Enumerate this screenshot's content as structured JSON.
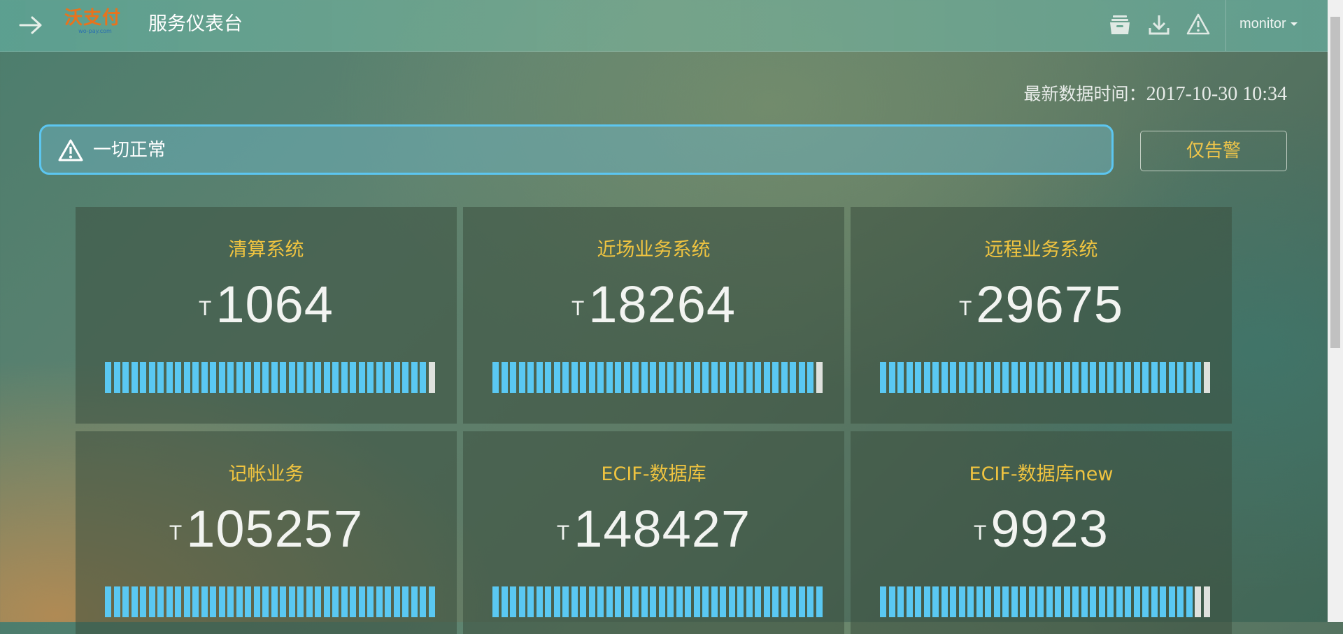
{
  "header": {
    "logo_text": "沃支付",
    "logo_subtext": "wo-pay.com",
    "title": "服务仪表台",
    "user": "monitor",
    "icons": [
      "archive-icon",
      "download-icon",
      "warning-icon"
    ]
  },
  "timestamp": {
    "label": "最新数据时间：",
    "value": "2017-10-30 10:34"
  },
  "alert": {
    "message": "一切正常",
    "icon": "warning-icon"
  },
  "ack_button": {
    "label": "仅告警"
  },
  "colors": {
    "accent": "#5ac8f2",
    "title": "#f0c440",
    "segment_empty": "#dfe1dd"
  },
  "cards": [
    {
      "title": "清算系统",
      "unit": "T",
      "value": "1064",
      "level": 0.97
    },
    {
      "title": "近场业务系统",
      "unit": "T",
      "value": "18264",
      "level": 0.97
    },
    {
      "title": "远程业务系统",
      "unit": "T",
      "value": "29675",
      "level": 0.97
    },
    {
      "title": "记帐业务",
      "unit": "T",
      "value": "105257",
      "level": 1.0
    },
    {
      "title": "ECIF-数据库",
      "unit": "T",
      "value": "148427",
      "level": 1.0
    },
    {
      "title": "ECIF-数据库new",
      "unit": "T",
      "value": "9923",
      "level": 0.95
    }
  ]
}
